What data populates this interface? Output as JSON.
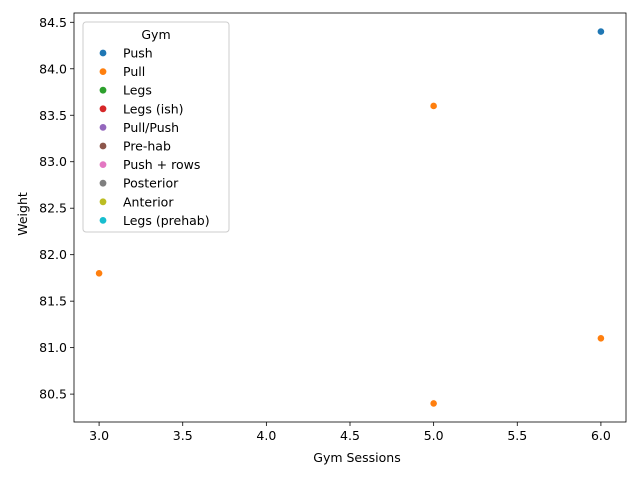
{
  "chart_data": {
    "type": "scatter",
    "xlabel": "Gym Sessions",
    "ylabel": "Weight",
    "xlim": [
      2.85,
      6.15
    ],
    "ylim": [
      80.2,
      84.6
    ],
    "xticks": [
      3.0,
      3.5,
      4.0,
      4.5,
      5.0,
      5.5,
      6.0
    ],
    "xtick_labels": [
      "3.0",
      "3.5",
      "4.0",
      "4.5",
      "5.0",
      "5.5",
      "6.0"
    ],
    "yticks": [
      80.5,
      81.0,
      81.5,
      82.0,
      82.5,
      83.0,
      83.5,
      84.0,
      84.5
    ],
    "ytick_labels": [
      "80.5",
      "81.0",
      "81.5",
      "82.0",
      "82.5",
      "83.0",
      "83.5",
      "84.0",
      "84.5"
    ],
    "grid": false,
    "legend": {
      "title": "Gym",
      "placement": "top-left",
      "entries": [
        {
          "label": "Push",
          "color": "#1f77b4"
        },
        {
          "label": "Pull",
          "color": "#ff7f0e"
        },
        {
          "label": "Legs",
          "color": "#2ca02c"
        },
        {
          "label": "Legs (ish)",
          "color": "#d62728"
        },
        {
          "label": "Pull/Push",
          "color": "#9467bd"
        },
        {
          "label": "Pre-hab",
          "color": "#8c564b"
        },
        {
          "label": "Push + rows",
          "color": "#e377c2"
        },
        {
          "label": "Posterior",
          "color": "#7f7f7f"
        },
        {
          "label": "Anterior",
          "color": "#bcbd22"
        },
        {
          "label": "Legs (prehab)",
          "color": "#17becf"
        }
      ]
    },
    "points": [
      {
        "x": 6.0,
        "y": 84.4,
        "series": "Push"
      },
      {
        "x": 5.0,
        "y": 83.6,
        "series": "Pull"
      },
      {
        "x": 3.0,
        "y": 81.8,
        "series": "Pull"
      },
      {
        "x": 6.0,
        "y": 81.1,
        "series": "Pull"
      },
      {
        "x": 5.0,
        "y": 80.4,
        "series": "Pull"
      }
    ]
  }
}
